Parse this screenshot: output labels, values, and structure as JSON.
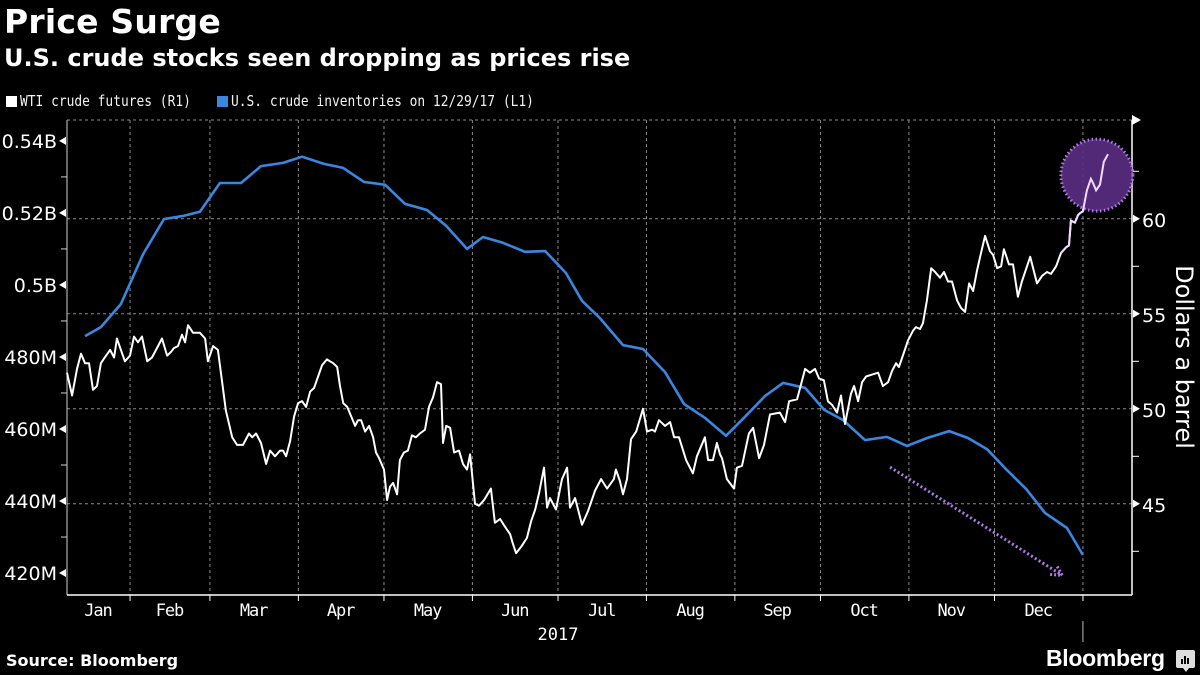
{
  "header": {
    "title": "Price Surge",
    "subtitle": "U.S. crude stocks seen dropping as prices rise"
  },
  "legend": [
    {
      "label": "WTI crude futures (R1)",
      "color": "#ffffff"
    },
    {
      "label": "U.S. crude inventories on 12/29/17 (L1)",
      "color": "#3a87e0"
    }
  ],
  "footer": {
    "source": "Source: Bloomberg",
    "brand": "Bloomberg",
    "brand_icon": "bloomberg-chart-icon"
  },
  "colors": {
    "background": "#000000",
    "wti": "#ffffff",
    "inventories": "#3a87e0",
    "gridline": "#8a8a8a",
    "axis": "#ffffff",
    "annotation_fill": "#5b2e83",
    "annotation_stroke": "#b07ae6"
  },
  "chart_data": {
    "type": "line",
    "title": "Price Surge",
    "subtitle": "U.S. crude stocks seen dropping as prices rise",
    "x_unit": "day of year 2017 (0 = Jan 1, 2017)",
    "xlim": [
      8.9,
      382.2
    ],
    "xlabel": "2017",
    "x_ticks": [
      {
        "label": "Jan",
        "start": 0,
        "end": 31
      },
      {
        "label": "Feb",
        "start": 31,
        "end": 59
      },
      {
        "label": "Mar",
        "start": 59,
        "end": 90
      },
      {
        "label": "Apr",
        "start": 90,
        "end": 120
      },
      {
        "label": "May",
        "start": 120,
        "end": 151
      },
      {
        "label": "Jun",
        "start": 151,
        "end": 181
      },
      {
        "label": "Jul",
        "start": 181,
        "end": 212
      },
      {
        "label": "Aug",
        "start": 212,
        "end": 243
      },
      {
        "label": "Sep",
        "start": 243,
        "end": 273
      },
      {
        "label": "Oct",
        "start": 273,
        "end": 304
      },
      {
        "label": "Nov",
        "start": 304,
        "end": 334
      },
      {
        "label": "Dec",
        "start": 334,
        "end": 365
      }
    ],
    "month_boundaries": [
      31,
      59,
      90,
      120,
      151,
      181,
      212,
      243,
      273,
      304,
      334,
      365
    ],
    "left_axis": {
      "unit": "barrels (millions)",
      "ylim": [
        413.9,
        545.8
      ],
      "ticks": [
        {
          "value": 540,
          "label": "0.54B"
        },
        {
          "value": 520,
          "label": "0.52B"
        },
        {
          "value": 500,
          "label": "0.5B"
        },
        {
          "value": 480,
          "label": "480M"
        },
        {
          "value": 460,
          "label": "460M"
        },
        {
          "value": 440,
          "label": "440M"
        },
        {
          "value": 420,
          "label": "420M"
        }
      ],
      "minor_ticks": [
        530,
        510,
        490,
        470,
        450,
        430
      ]
    },
    "right_axis": {
      "label": "Dollars a barrel",
      "ylim": [
        40.2,
        65.2
      ],
      "ticks": [
        {
          "value": 60,
          "label": "60"
        },
        {
          "value": 55,
          "label": "55"
        },
        {
          "value": 50,
          "label": "50"
        },
        {
          "value": 45,
          "label": "45"
        }
      ],
      "minor_ticks": [
        62.5,
        57.5,
        52.5,
        47.5,
        42.5
      ],
      "grid_values": [
        60,
        55,
        50,
        45
      ]
    },
    "grid": true,
    "legend_position": "top-left",
    "series": [
      {
        "name": "WTI crude futures (R1)",
        "axis": "right",
        "unit": "USD per barrel",
        "x": [
          8.9,
          10.7,
          12.4,
          13.8,
          15.2,
          16.6,
          18.0,
          19.4,
          20.8,
          22.6,
          24.0,
          25.4,
          26.4,
          27.8,
          29.2,
          31.0,
          32.4,
          33.8,
          35.2,
          37.0,
          38.7,
          40.8,
          42.2,
          44.0,
          45.4,
          46.4,
          47.8,
          49.2,
          50.3,
          51.3,
          53.1,
          55.5,
          57.3,
          58.3,
          60.1,
          61.8,
          64.6,
          66.8,
          68.5,
          70.6,
          72.7,
          73.8,
          75.2,
          76.9,
          78.7,
          80.1,
          81.8,
          83.6,
          84.6,
          85.7,
          87.1,
          88.5,
          89.9,
          91.3,
          92.7,
          94.1,
          95.5,
          96.9,
          98.3,
          100.0,
          101.1,
          102.2,
          103.6,
          104.6,
          105.7,
          107.1,
          108.5,
          109.9,
          110.9,
          112.0,
          113.4,
          114.8,
          116.2,
          117.2,
          118.3,
          120.0,
          121.1,
          122.1,
          123.2,
          124.6,
          125.6,
          127.0,
          128.4,
          129.8,
          131.2,
          132.6,
          134.4,
          135.8,
          137.2,
          138.6,
          140.0,
          140.7,
          141.8,
          143.2,
          144.6,
          146.3,
          147.7,
          149.1,
          150.2,
          151.9,
          153.3,
          155.1,
          157.5,
          158.9,
          160.7,
          162.4,
          164.2,
          165.2,
          166.3,
          168.4,
          170.1,
          171.6,
          173.0,
          174.4,
          176.1,
          177.2,
          178.2,
          180.3,
          182.4,
          184.2,
          185.2,
          187.0,
          189.4,
          191.5,
          194.0,
          196.1,
          198.2,
          200.6,
          201.3,
          202.7,
          203.8,
          205.2,
          206.6,
          208.4,
          210.8,
          212.2,
          214.0,
          215.0,
          216.4,
          218.5,
          220.3,
          221.7,
          223.4,
          225.9,
          228.3,
          229.7,
          232.5,
          233.6,
          235.3,
          236.7,
          237.8,
          238.5,
          240.2,
          242.7,
          243.7,
          245.5,
          247.9,
          249.4,
          251.5,
          253.2,
          255.3,
          258.8,
          260.6,
          262.0,
          264.8,
          267.6,
          269.3,
          271.1,
          272.5,
          274.2,
          275.6,
          277.1,
          278.8,
          280.2,
          281.6,
          283.7,
          284.8,
          286.2,
          287.6,
          289.0,
          291.1,
          293.2,
          294.9,
          296.7,
          298.1,
          299.5,
          300.5,
          301.9,
          303.7,
          305.4,
          306.5,
          307.9,
          308.9,
          310.3,
          311.8,
          313.2,
          314.9,
          316.3,
          317.7,
          319.1,
          320.9,
          322.3,
          323.7,
          325.1,
          326.5,
          327.9,
          329.6,
          330.7,
          332.4,
          333.5,
          334.9,
          336.3,
          337.3,
          339.1,
          340.5,
          342.2,
          343.6,
          346.5,
          348.9,
          350.7,
          352.4,
          353.8,
          355.6,
          357.3,
          359.1,
          360.1,
          360.8,
          362.2,
          363.3,
          364.0,
          365.0,
          366.4,
          367.8,
          368.5,
          369.6,
          371.0,
          372.3,
          373.8
        ],
        "values": [
          51.9,
          50.7,
          52.1,
          52.9,
          52.4,
          52.4,
          51.0,
          51.2,
          52.4,
          52.8,
          53.1,
          52.7,
          53.7,
          53.1,
          52.5,
          52.8,
          53.8,
          53.5,
          53.8,
          52.5,
          52.7,
          53.3,
          53.7,
          52.8,
          53.0,
          53.2,
          53.3,
          53.9,
          53.5,
          54.4,
          54.0,
          54.0,
          53.7,
          52.5,
          53.3,
          53.1,
          49.9,
          48.5,
          48.1,
          48.1,
          48.7,
          48.5,
          48.7,
          48.2,
          47.1,
          47.8,
          47.5,
          47.8,
          47.8,
          47.5,
          48.3,
          49.6,
          50.3,
          50.4,
          50.1,
          50.9,
          51.1,
          51.7,
          52.3,
          52.6,
          52.5,
          52.4,
          52.2,
          51.2,
          50.3,
          50.1,
          49.6,
          49.1,
          49.4,
          49.4,
          48.8,
          49.1,
          48.5,
          47.7,
          47.4,
          46.8,
          45.2,
          45.9,
          46.1,
          45.5,
          47.3,
          47.7,
          47.8,
          48.6,
          48.5,
          48.7,
          48.9,
          50.1,
          50.6,
          51.4,
          51.3,
          48.2,
          49.1,
          49.0,
          47.7,
          47.8,
          47.1,
          46.8,
          47.6,
          45.0,
          44.9,
          45.2,
          45.8,
          44.0,
          44.2,
          43.8,
          43.4,
          42.9,
          42.4,
          42.8,
          43.2,
          44.1,
          44.7,
          45.6,
          46.9,
          44.8,
          45.3,
          44.7,
          46.3,
          46.9,
          44.8,
          45.3,
          43.9,
          44.6,
          45.7,
          46.3,
          45.8,
          46.3,
          46.8,
          46.2,
          45.5,
          46.3,
          48.4,
          48.8,
          50.0,
          48.8,
          48.9,
          48.8,
          49.4,
          49.1,
          49.3,
          48.5,
          48.5,
          47.3,
          46.6,
          47.5,
          48.5,
          47.3,
          47.3,
          48.2,
          47.6,
          47.4,
          46.3,
          45.8,
          46.9,
          47.0,
          48.7,
          49.0,
          47.4,
          48.1,
          49.7,
          49.8,
          49.3,
          50.4,
          50.5,
          52.1,
          51.9,
          52.1,
          51.6,
          51.5,
          50.4,
          50.2,
          49.8,
          50.7,
          49.2,
          50.8,
          51.2,
          50.4,
          51.4,
          51.7,
          51.8,
          51.9,
          51.2,
          51.4,
          52.0,
          52.4,
          52.2,
          52.8,
          53.6,
          54.1,
          54.3,
          54.2,
          54.5,
          55.7,
          57.4,
          57.2,
          56.9,
          57.2,
          56.7,
          56.7,
          55.7,
          55.3,
          55.1,
          56.6,
          56.2,
          57.3,
          58.4,
          59.1,
          58.3,
          58.1,
          57.4,
          57.5,
          58.4,
          57.6,
          57.6,
          55.9,
          56.7,
          58.0,
          56.6,
          57.0,
          57.2,
          57.1,
          57.5,
          58.2,
          58.5,
          58.6,
          59.9,
          59.8,
          60.2,
          60.3,
          60.4,
          61.5,
          62.1,
          61.9,
          61.5,
          61.8,
          63.0,
          63.4
        ]
      },
      {
        "name": "U.S. crude inventories on 12/29/17 (L1)",
        "axis": "left",
        "unit": "barrels (millions)",
        "x": [
          15.2,
          20.8,
          27.8,
          35.6,
          42.9,
          49.9,
          55.5,
          62.5,
          69.9,
          76.9,
          84.6,
          91.3,
          99.0,
          105.7,
          113.0,
          120.4,
          127.4,
          135.1,
          141.8,
          149.1,
          154.7,
          161.7,
          169.4,
          176.5,
          183.8,
          189.4,
          195.7,
          203.8,
          210.8,
          218.5,
          225.2,
          232.5,
          239.9,
          246.2,
          253.6,
          259.9,
          267.6,
          274.3,
          280.9,
          288.6,
          296.3,
          303.3,
          310.4,
          318.1,
          324.7,
          331.4,
          338.0,
          345.1,
          351.7,
          359.4,
          365.0
        ],
        "values": [
          485.8,
          488.3,
          494.7,
          508.6,
          518.3,
          519.2,
          520.3,
          528.3,
          528.3,
          533.0,
          533.9,
          535.6,
          533.6,
          532.5,
          528.6,
          527.8,
          522.5,
          520.8,
          516.4,
          510.0,
          513.3,
          511.7,
          509.2,
          509.4,
          503.3,
          495.6,
          490.8,
          483.3,
          482.2,
          475.8,
          466.9,
          463.1,
          458.1,
          463.1,
          469.2,
          472.8,
          471.4,
          465.3,
          462.5,
          456.9,
          457.8,
          455.3,
          457.5,
          459.4,
          457.5,
          454.4,
          448.9,
          443.3,
          436.7,
          432.5,
          425.0
        ]
      }
    ],
    "annotations": [
      {
        "type": "circle",
        "description": "highlight on latest WTI price surge"
      },
      {
        "type": "dotted-arrow",
        "description": "downward trend in inventories"
      }
    ]
  }
}
